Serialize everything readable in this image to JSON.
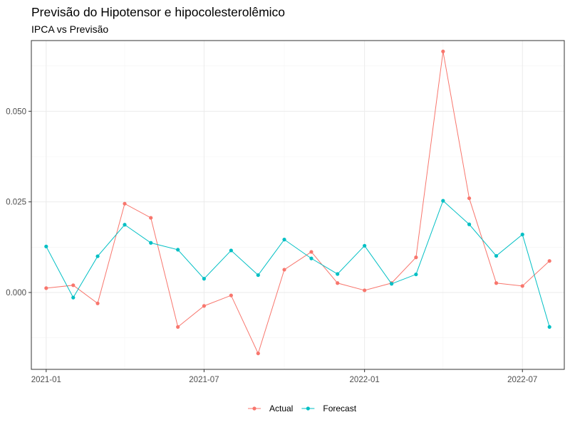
{
  "chart_data": {
    "type": "line",
    "title": "Previsão do Hipotensor e hipocolesterolêmico",
    "subtitle": "IPCA vs Previsão",
    "xlabel": "",
    "ylabel": "",
    "x": [
      "2021-01-01",
      "2021-02-01",
      "2021-03-01",
      "2021-04-01",
      "2021-05-01",
      "2021-06-01",
      "2021-07-01",
      "2021-08-01",
      "2021-09-01",
      "2021-10-01",
      "2021-11-01",
      "2021-12-01",
      "2022-01-01",
      "2022-02-01",
      "2022-03-01",
      "2022-04-01",
      "2022-05-01",
      "2022-06-01",
      "2022-07-01",
      "2022-08-01"
    ],
    "xlim": [
      "2020-12-15",
      "2022-08-18"
    ],
    "ylim": [
      -0.0212,
      0.0695
    ],
    "x_ticks": [
      {
        "date": "2021-01-01",
        "label": "2021-01"
      },
      {
        "date": "2021-07-01",
        "label": "2021-07"
      },
      {
        "date": "2022-01-01",
        "label": "2022-01"
      },
      {
        "date": "2022-07-01",
        "label": "2022-07"
      }
    ],
    "x_minor_ticks": [
      "2021-04-01",
      "2021-10-01",
      "2022-04-01"
    ],
    "y_ticks": [
      {
        "value": 0.0,
        "label": "0.000"
      },
      {
        "value": 0.025,
        "label": "0.025"
      },
      {
        "value": 0.05,
        "label": "0.050"
      }
    ],
    "y_minor_ticks": [
      -0.0125,
      0.0125,
      0.0375,
      0.0625
    ],
    "grid": true,
    "legend": "bottom",
    "series": [
      {
        "name": "Actual",
        "color": "#F8766D",
        "values": [
          0.0012,
          0.002,
          -0.003,
          0.0245,
          0.0206,
          -0.0095,
          -0.0037,
          -0.0008,
          -0.0168,
          0.0063,
          0.0112,
          0.0026,
          0.0006,
          0.0026,
          0.0097,
          0.0665,
          0.026,
          0.0026,
          0.0018,
          0.0087
        ]
      },
      {
        "name": "Forecast",
        "color": "#00BFC4",
        "values": [
          0.0127,
          -0.0014,
          0.01,
          0.0187,
          0.0137,
          0.0118,
          0.0038,
          0.0116,
          0.0048,
          0.0146,
          0.0094,
          0.0051,
          0.0129,
          0.0024,
          0.005,
          0.0253,
          0.0188,
          0.0101,
          0.016,
          -0.0095
        ]
      }
    ]
  }
}
